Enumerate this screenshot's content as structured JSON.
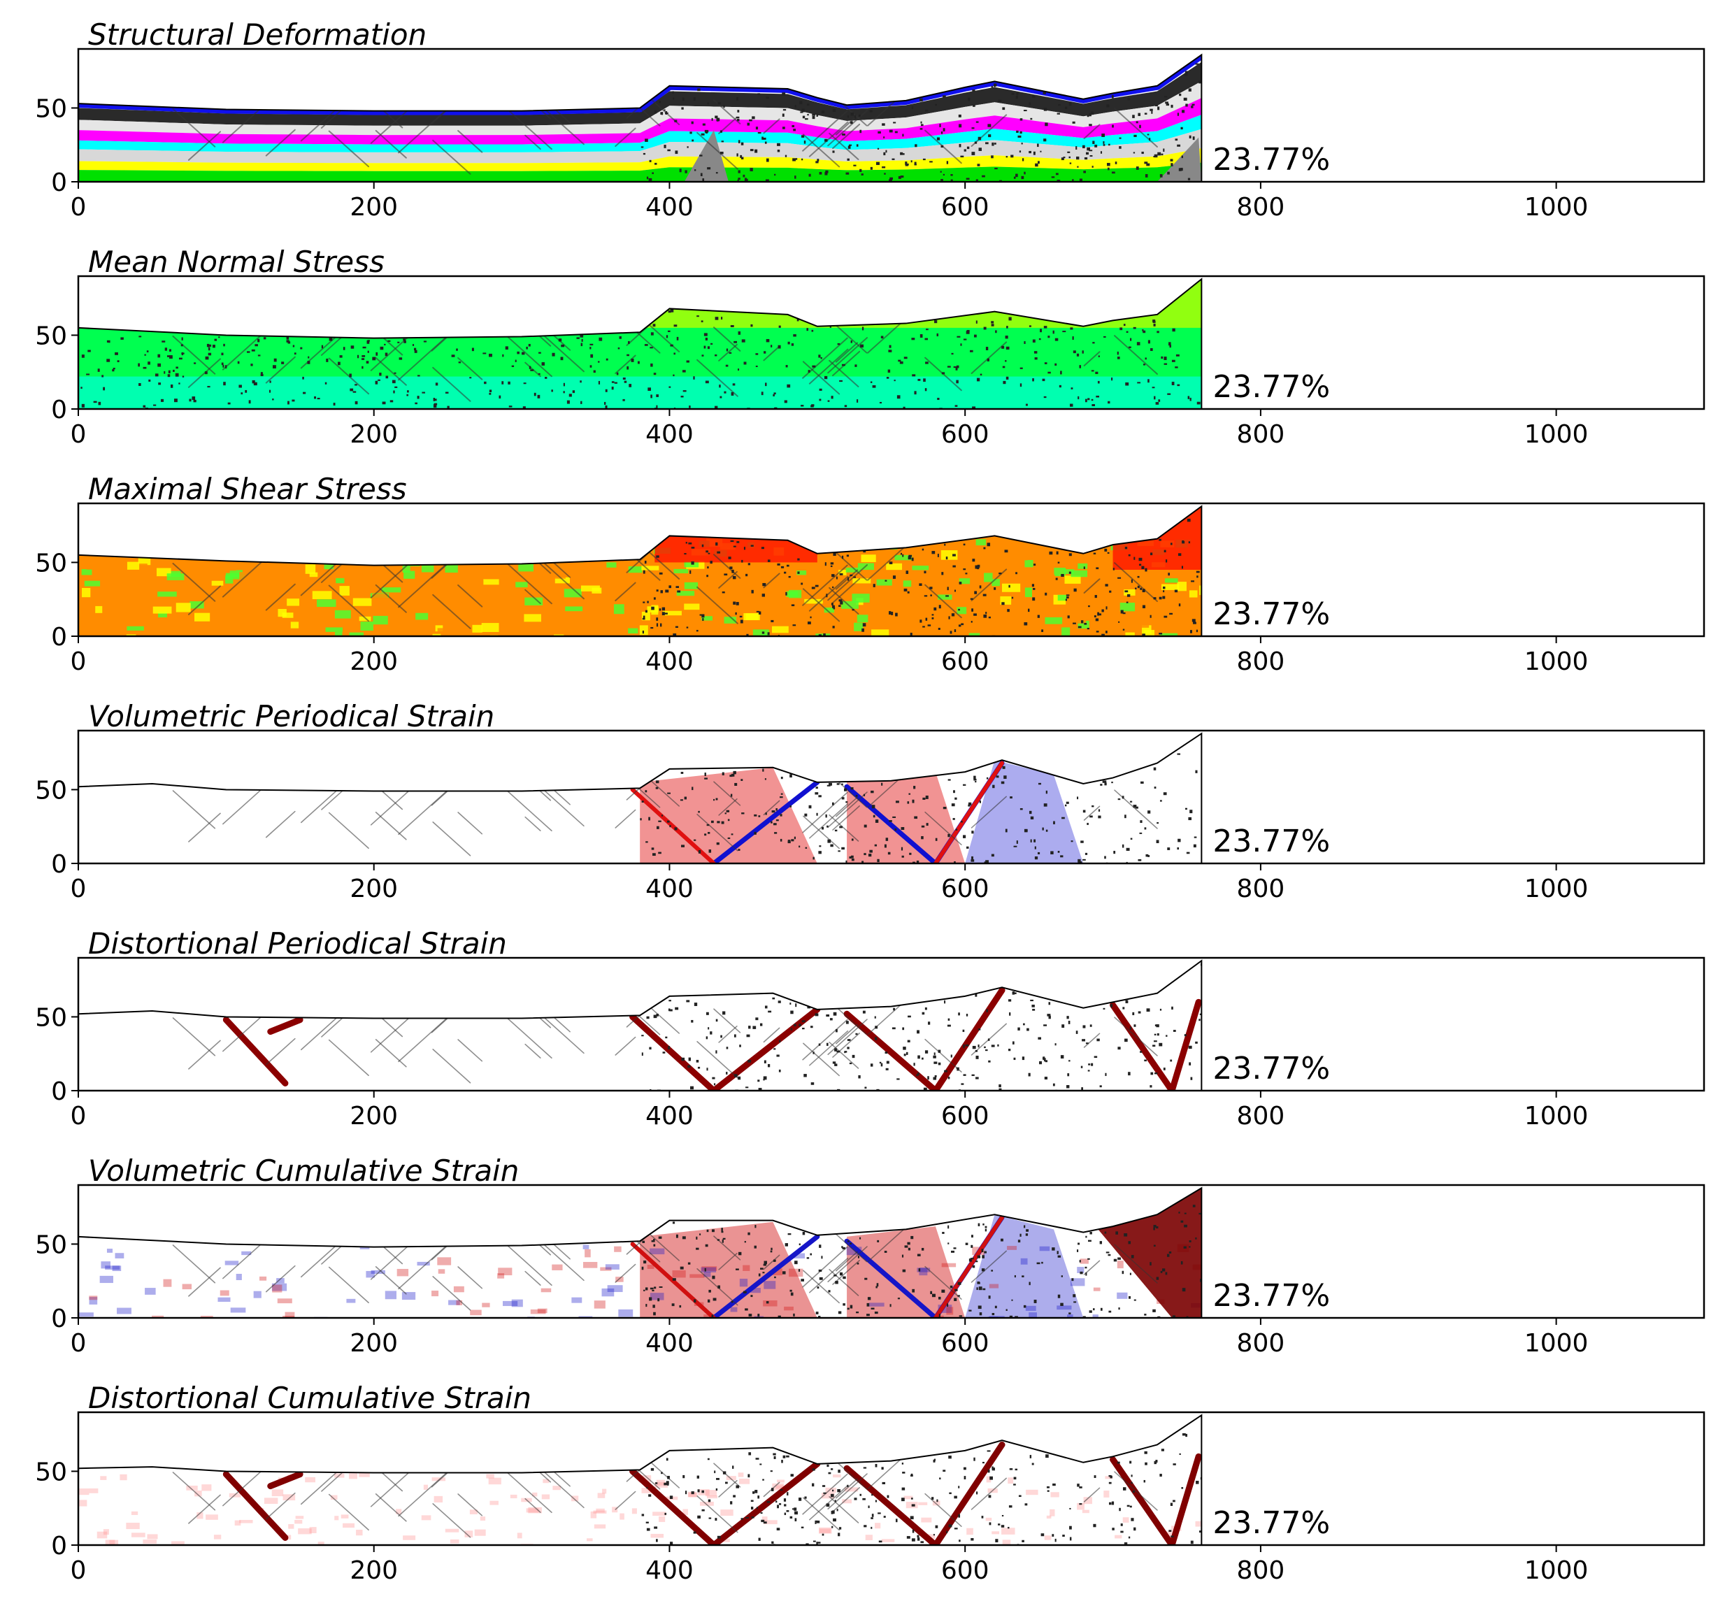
{
  "figure": {
    "x_ticks": [
      0,
      200,
      400,
      600,
      800,
      1000
    ],
    "y_ticks": [
      0,
      50
    ],
    "x_range": [
      0,
      1100
    ],
    "y_range": [
      0,
      90
    ],
    "percent_label": "23.77%",
    "wall_x": 760
  },
  "chart_data": [
    {
      "type": "heatmap",
      "kind": "layers",
      "title": "Structural Deformation",
      "annotation": "23.77%",
      "xlim": [
        0,
        1100
      ],
      "ylim": [
        0,
        90
      ],
      "grid": false,
      "surface": [
        [
          0,
          53
        ],
        [
          50,
          51
        ],
        [
          100,
          49
        ],
        [
          200,
          48
        ],
        [
          300,
          48
        ],
        [
          380,
          50
        ],
        [
          400,
          65
        ],
        [
          480,
          63
        ],
        [
          500,
          57
        ],
        [
          520,
          52
        ],
        [
          560,
          55
        ],
        [
          600,
          64
        ],
        [
          620,
          68
        ],
        [
          680,
          56
        ],
        [
          700,
          60
        ],
        [
          730,
          65
        ],
        [
          760,
          86
        ]
      ],
      "layer_colors": [
        "#2a2a2a",
        "#e6e6e6",
        "#ff00ff",
        "#00ffff",
        "#d8d8d8",
        "#ffff00",
        "#00e000"
      ],
      "layer_tops": [
        50,
        42,
        35,
        28,
        22,
        14,
        8
      ]
    },
    {
      "type": "heatmap",
      "kind": "mean-normal",
      "title": "Mean Normal Stress",
      "annotation": "23.77%",
      "xlim": [
        0,
        1100
      ],
      "ylim": [
        0,
        90
      ],
      "grid": false,
      "surface": [
        [
          0,
          55
        ],
        [
          100,
          50
        ],
        [
          200,
          48
        ],
        [
          300,
          49
        ],
        [
          380,
          52
        ],
        [
          400,
          68
        ],
        [
          480,
          64
        ],
        [
          500,
          56
        ],
        [
          560,
          58
        ],
        [
          620,
          66
        ],
        [
          680,
          56
        ],
        [
          700,
          60
        ],
        [
          730,
          64
        ],
        [
          760,
          88
        ]
      ],
      "colors": [
        "#00ffff",
        "#00ff50",
        "#b5ff00"
      ]
    },
    {
      "type": "heatmap",
      "kind": "max-shear",
      "title": "Maximal Shear Stress",
      "annotation": "23.77%",
      "xlim": [
        0,
        1100
      ],
      "ylim": [
        0,
        90
      ],
      "grid": false,
      "surface": [
        [
          0,
          55
        ],
        [
          100,
          51
        ],
        [
          200,
          48
        ],
        [
          300,
          49
        ],
        [
          380,
          52
        ],
        [
          400,
          68
        ],
        [
          480,
          65
        ],
        [
          500,
          56
        ],
        [
          560,
          60
        ],
        [
          620,
          68
        ],
        [
          680,
          56
        ],
        [
          700,
          62
        ],
        [
          730,
          66
        ],
        [
          760,
          88
        ]
      ],
      "colors": [
        "#4cff30",
        "#ffff00",
        "#ff8c00",
        "#ff1a00"
      ]
    },
    {
      "type": "heatmap",
      "kind": "vol-periodical",
      "title": "Volumetric Periodical Strain",
      "annotation": "23.77%",
      "xlim": [
        0,
        1100
      ],
      "ylim": [
        0,
        90
      ],
      "grid": false,
      "surface": [
        [
          0,
          52
        ],
        [
          50,
          54
        ],
        [
          100,
          50
        ],
        [
          200,
          49
        ],
        [
          300,
          49
        ],
        [
          380,
          51
        ],
        [
          400,
          64
        ],
        [
          470,
          65
        ],
        [
          500,
          55
        ],
        [
          550,
          56
        ],
        [
          600,
          62
        ],
        [
          625,
          70
        ],
        [
          680,
          54
        ],
        [
          700,
          58
        ],
        [
          730,
          68
        ],
        [
          760,
          88
        ]
      ],
      "colors": [
        "#ffffff",
        "#e01010",
        "#1010d0"
      ]
    },
    {
      "type": "heatmap",
      "kind": "dist-periodical",
      "title": "Distortional Periodical Strain",
      "annotation": "23.77%",
      "xlim": [
        0,
        1100
      ],
      "ylim": [
        0,
        90
      ],
      "grid": false,
      "surface": [
        [
          0,
          52
        ],
        [
          50,
          54
        ],
        [
          100,
          50
        ],
        [
          200,
          49
        ],
        [
          300,
          49
        ],
        [
          380,
          51
        ],
        [
          400,
          64
        ],
        [
          470,
          66
        ],
        [
          500,
          55
        ],
        [
          550,
          57
        ],
        [
          600,
          64
        ],
        [
          625,
          70
        ],
        [
          680,
          56
        ],
        [
          700,
          60
        ],
        [
          730,
          66
        ],
        [
          760,
          88
        ]
      ],
      "colors": [
        "#ffffff",
        "#8b0000"
      ]
    },
    {
      "type": "heatmap",
      "kind": "vol-cumulative",
      "title": "Volumetric Cumulative Strain",
      "annotation": "23.77%",
      "xlim": [
        0,
        1100
      ],
      "ylim": [
        0,
        90
      ],
      "grid": false,
      "surface": [
        [
          0,
          55
        ],
        [
          100,
          50
        ],
        [
          200,
          48
        ],
        [
          300,
          49
        ],
        [
          380,
          52
        ],
        [
          400,
          66
        ],
        [
          470,
          66
        ],
        [
          500,
          56
        ],
        [
          560,
          60
        ],
        [
          620,
          70
        ],
        [
          680,
          58
        ],
        [
          700,
          62
        ],
        [
          730,
          70
        ],
        [
          760,
          88
        ]
      ],
      "colors": [
        "#ffffff",
        "#d01010",
        "#1515c8",
        "#7a0000"
      ]
    },
    {
      "type": "heatmap",
      "kind": "dist-cumulative",
      "title": "Distortional Cumulative Strain",
      "annotation": "23.77%",
      "xlim": [
        0,
        1100
      ],
      "ylim": [
        0,
        90
      ],
      "grid": false,
      "surface": [
        [
          0,
          52
        ],
        [
          50,
          53
        ],
        [
          100,
          50
        ],
        [
          200,
          49
        ],
        [
          300,
          49
        ],
        [
          380,
          51
        ],
        [
          400,
          64
        ],
        [
          470,
          66
        ],
        [
          500,
          55
        ],
        [
          550,
          57
        ],
        [
          600,
          64
        ],
        [
          625,
          71
        ],
        [
          680,
          56
        ],
        [
          700,
          60
        ],
        [
          730,
          68
        ],
        [
          760,
          88
        ]
      ],
      "colors": [
        "#ffffff",
        "#ff9090",
        "#800000"
      ]
    }
  ]
}
